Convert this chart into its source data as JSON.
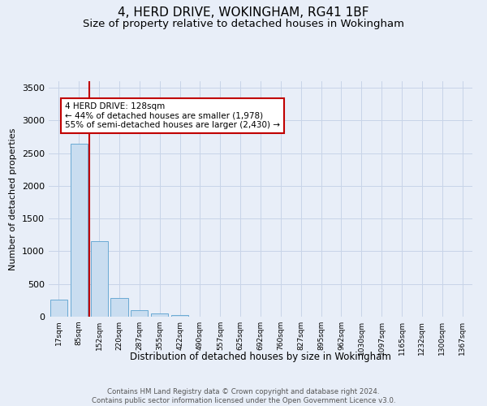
{
  "title": "4, HERD DRIVE, WOKINGHAM, RG41 1BF",
  "subtitle": "Size of property relative to detached houses in Wokingham",
  "xlabel": "Distribution of detached houses by size in Wokingham",
  "ylabel": "Number of detached properties",
  "footer_line1": "Contains HM Land Registry data © Crown copyright and database right 2024.",
  "footer_line2": "Contains public sector information licensed under the Open Government Licence v3.0.",
  "bin_labels": [
    "17sqm",
    "85sqm",
    "152sqm",
    "220sqm",
    "287sqm",
    "355sqm",
    "422sqm",
    "490sqm",
    "557sqm",
    "625sqm",
    "692sqm",
    "760sqm",
    "827sqm",
    "895sqm",
    "962sqm",
    "1030sqm",
    "1097sqm",
    "1165sqm",
    "1232sqm",
    "1300sqm",
    "1367sqm"
  ],
  "bar_values": [
    255,
    2650,
    1150,
    280,
    100,
    55,
    20,
    0,
    0,
    0,
    0,
    0,
    0,
    0,
    0,
    0,
    0,
    0,
    0,
    0,
    0
  ],
  "bar_color": "#c9ddf0",
  "bar_edge_color": "#6aaad4",
  "vline_color": "#c00000",
  "annotation_text": "4 HERD DRIVE: 128sqm\n← 44% of detached houses are smaller (1,978)\n55% of semi-detached houses are larger (2,430) →",
  "annotation_box_color": "#ffffff",
  "annotation_box_edge": "#c00000",
  "ylim": [
    0,
    3600
  ],
  "yticks": [
    0,
    500,
    1000,
    1500,
    2000,
    2500,
    3000,
    3500
  ],
  "grid_color": "#c8d4e8",
  "background_color": "#e8eef8",
  "plot_bg_color": "#e8eef8",
  "title_fontsize": 11,
  "subtitle_fontsize": 9.5
}
